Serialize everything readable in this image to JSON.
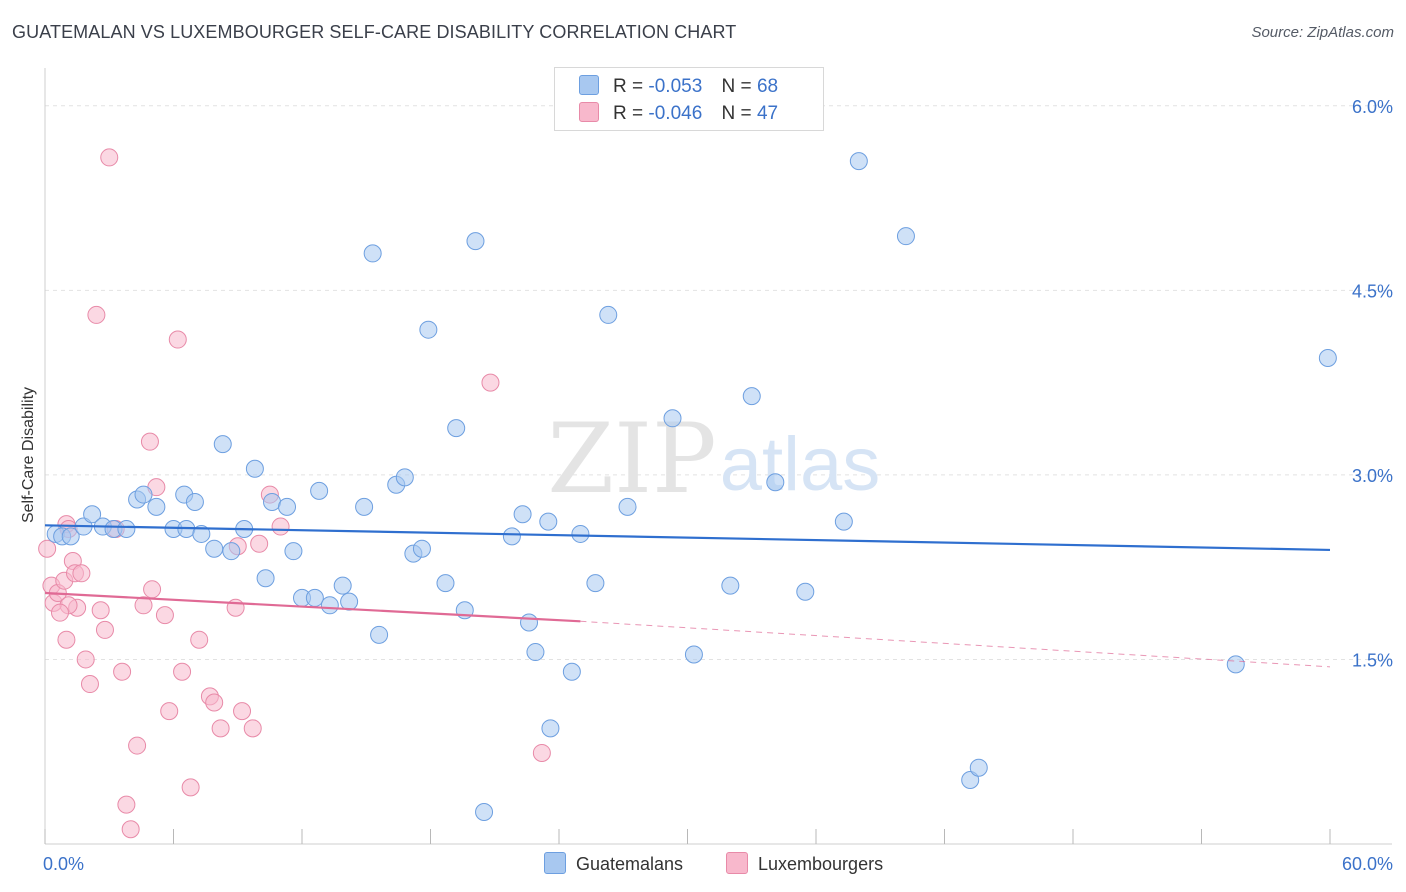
{
  "title": "GUATEMALAN VS LUXEMBOURGER SELF-CARE DISABILITY CORRELATION CHART",
  "source": "Source: ZipAtlas.com",
  "watermark": {
    "zip": "ZIP",
    "atlas": "atlas"
  },
  "legend": {
    "r_label": "R =",
    "n_label": "N =",
    "rows": [
      {
        "r": "-0.053",
        "n": "68",
        "color": "#a8c8f0"
      },
      {
        "r": "-0.046",
        "n": "47",
        "color": "#f8b8cc"
      }
    ]
  },
  "bottom_legend": [
    "Guatemalans",
    "Luxembourgers"
  ],
  "colors": {
    "blue_fill": "#a8c8f0",
    "blue_stroke": "#6d9fe0",
    "blue_line": "#2f6fcf",
    "pink_fill": "#f8b8cc",
    "pink_stroke": "#e88aa8",
    "pink_line": "#e06a95",
    "tick_label": "#3b72c9",
    "grid": "#e2e2e2"
  },
  "chart_data": {
    "type": "scatter",
    "title": "GUATEMALAN VS LUXEMBOURGER SELF-CARE DISABILITY CORRELATION CHART",
    "xlabel": "",
    "ylabel": "Self-Care Disability",
    "xlim": [
      0,
      60
    ],
    "ylim": [
      0,
      6.25
    ],
    "x_tick_labels": [
      "0.0%",
      "60.0%"
    ],
    "y_ticks": [
      1.5,
      3.0,
      4.5,
      6.0
    ],
    "y_tick_labels": [
      "1.5%",
      "3.0%",
      "4.5%",
      "6.0%"
    ],
    "series": [
      {
        "name": "Guatemalans",
        "r": -0.053,
        "n": 68,
        "trend": {
          "x": [
            0,
            60
          ],
          "y": [
            2.59,
            2.39
          ]
        },
        "points": [
          [
            0.5,
            2.52
          ],
          [
            0.8,
            2.5
          ],
          [
            1.2,
            2.5
          ],
          [
            1.8,
            2.58
          ],
          [
            2.2,
            2.68
          ],
          [
            2.7,
            2.58
          ],
          [
            3.2,
            2.56
          ],
          [
            3.8,
            2.56
          ],
          [
            4.3,
            2.8
          ],
          [
            4.6,
            2.84
          ],
          [
            5.2,
            2.74
          ],
          [
            6.0,
            2.56
          ],
          [
            6.6,
            2.56
          ],
          [
            6.5,
            2.84
          ],
          [
            7.0,
            2.78
          ],
          [
            7.3,
            2.52
          ],
          [
            7.9,
            2.4
          ],
          [
            8.3,
            3.25
          ],
          [
            8.7,
            2.38
          ],
          [
            9.3,
            2.56
          ],
          [
            9.8,
            3.05
          ],
          [
            10.3,
            2.16
          ],
          [
            10.6,
            2.78
          ],
          [
            11.3,
            2.74
          ],
          [
            11.6,
            2.38
          ],
          [
            12.0,
            2.0
          ],
          [
            12.6,
            2.0
          ],
          [
            12.8,
            2.87
          ],
          [
            13.3,
            1.94
          ],
          [
            13.9,
            2.1
          ],
          [
            14.2,
            1.97
          ],
          [
            14.9,
            2.74
          ],
          [
            15.3,
            4.8
          ],
          [
            15.6,
            1.7
          ],
          [
            16.4,
            2.92
          ],
          [
            16.8,
            2.98
          ],
          [
            17.2,
            2.36
          ],
          [
            17.6,
            2.4
          ],
          [
            17.9,
            4.18
          ],
          [
            18.7,
            2.12
          ],
          [
            19.2,
            3.38
          ],
          [
            19.6,
            1.9
          ],
          [
            20.1,
            4.9
          ],
          [
            21.8,
            2.5
          ],
          [
            22.3,
            2.68
          ],
          [
            22.6,
            1.8
          ],
          [
            22.9,
            1.56
          ],
          [
            23.5,
            2.62
          ],
          [
            24.6,
            1.4
          ],
          [
            25.0,
            2.52
          ],
          [
            25.7,
            2.12
          ],
          [
            26.3,
            4.3
          ],
          [
            27.2,
            2.74
          ],
          [
            29.3,
            3.46
          ],
          [
            30.3,
            1.54
          ],
          [
            32.0,
            2.1
          ],
          [
            33.0,
            3.64
          ],
          [
            34.1,
            2.94
          ],
          [
            35.5,
            2.05
          ],
          [
            37.3,
            2.62
          ],
          [
            38.0,
            5.55
          ],
          [
            40.2,
            4.94
          ],
          [
            43.2,
            0.52
          ],
          [
            43.6,
            0.62
          ],
          [
            55.6,
            1.46
          ],
          [
            59.9,
            3.95
          ],
          [
            20.5,
            0.26
          ],
          [
            23.6,
            0.94
          ]
        ]
      },
      {
        "name": "Luxembourgers",
        "r": -0.046,
        "n": 47,
        "trend": {
          "x": [
            0,
            25
          ],
          "y": [
            2.04,
            1.81
          ],
          "dashed_to": [
            60,
            1.44
          ]
        },
        "points": [
          [
            0.1,
            2.4
          ],
          [
            0.3,
            2.1
          ],
          [
            0.4,
            1.96
          ],
          [
            0.6,
            2.04
          ],
          [
            0.9,
            2.14
          ],
          [
            1.0,
            2.6
          ],
          [
            1.1,
            2.56
          ],
          [
            1.3,
            2.3
          ],
          [
            1.4,
            2.2
          ],
          [
            1.5,
            1.92
          ],
          [
            1.7,
            2.2
          ],
          [
            1.9,
            1.5
          ],
          [
            2.1,
            1.3
          ],
          [
            2.4,
            4.3
          ],
          [
            2.6,
            1.9
          ],
          [
            2.8,
            1.74
          ],
          [
            3.0,
            5.58
          ],
          [
            3.3,
            2.56
          ],
          [
            3.6,
            1.4
          ],
          [
            3.8,
            0.32
          ],
          [
            4.0,
            0.12
          ],
          [
            4.3,
            0.8
          ],
          [
            4.6,
            1.94
          ],
          [
            4.9,
            3.27
          ],
          [
            5.0,
            2.07
          ],
          [
            5.2,
            2.9
          ],
          [
            5.6,
            1.86
          ],
          [
            5.8,
            1.08
          ],
          [
            6.2,
            4.1
          ],
          [
            6.4,
            1.4
          ],
          [
            6.8,
            0.46
          ],
          [
            7.2,
            1.66
          ],
          [
            7.7,
            1.2
          ],
          [
            7.9,
            1.15
          ],
          [
            8.2,
            0.94
          ],
          [
            8.9,
            1.92
          ],
          [
            9.0,
            2.42
          ],
          [
            9.2,
            1.08
          ],
          [
            9.7,
            0.94
          ],
          [
            10.0,
            2.44
          ],
          [
            10.5,
            2.84
          ],
          [
            11.0,
            2.58
          ],
          [
            20.8,
            3.75
          ],
          [
            23.2,
            0.74
          ],
          [
            1.1,
            1.94
          ],
          [
            0.7,
            1.88
          ],
          [
            1.0,
            1.66
          ]
        ]
      }
    ]
  }
}
